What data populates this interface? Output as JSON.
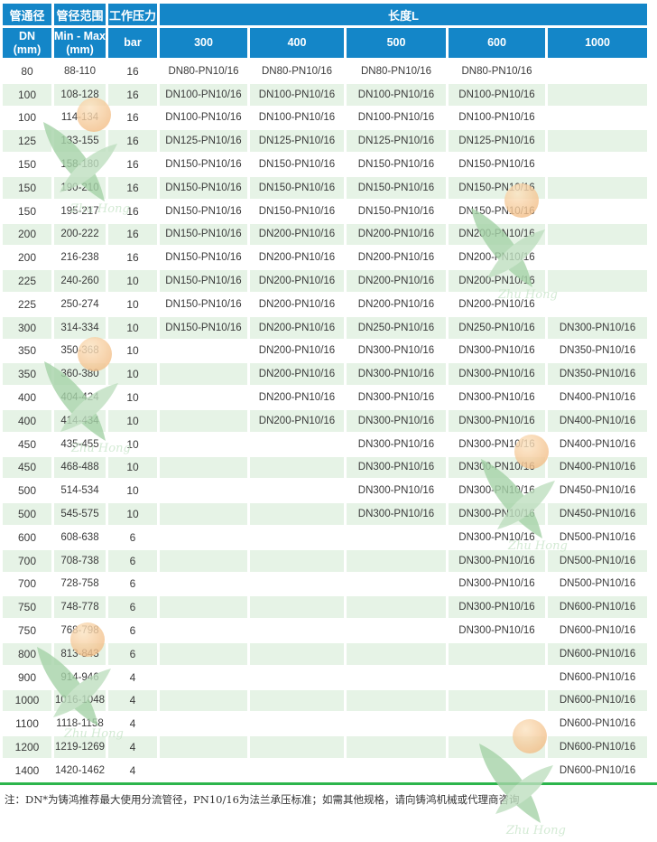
{
  "table": {
    "header": {
      "col1": {
        "title": "管通径",
        "line1": "DN",
        "line2": "(mm)"
      },
      "col2": {
        "title": "管径范围",
        "line1": "Min - Max",
        "line2": "(mm)"
      },
      "col3": {
        "title": "工作压力",
        "sub": "bar"
      },
      "length": {
        "title": "长度L",
        "cols": [
          "300",
          "400",
          "500",
          "600",
          "1000"
        ]
      }
    },
    "rows": [
      [
        "80",
        "88-110",
        "16",
        "DN80-PN10/16",
        "DN80-PN10/16",
        "DN80-PN10/16",
        "DN80-PN10/16",
        ""
      ],
      [
        "100",
        "108-128",
        "16",
        "DN100-PN10/16",
        "DN100-PN10/16",
        "DN100-PN10/16",
        "DN100-PN10/16",
        ""
      ],
      [
        "100",
        "114-134",
        "16",
        "DN100-PN10/16",
        "DN100-PN10/16",
        "DN100-PN10/16",
        "DN100-PN10/16",
        ""
      ],
      [
        "125",
        "133-155",
        "16",
        "DN125-PN10/16",
        "DN125-PN10/16",
        "DN125-PN10/16",
        "DN125-PN10/16",
        ""
      ],
      [
        "150",
        "158-180",
        "16",
        "DN150-PN10/16",
        "DN150-PN10/16",
        "DN150-PN10/16",
        "DN150-PN10/16",
        ""
      ],
      [
        "150",
        "190-210",
        "16",
        "DN150-PN10/16",
        "DN150-PN10/16",
        "DN150-PN10/16",
        "DN150-PN10/16",
        ""
      ],
      [
        "150",
        "195-217",
        "16",
        "DN150-PN10/16",
        "DN150-PN10/16",
        "DN150-PN10/16",
        "DN150-PN10/16",
        ""
      ],
      [
        "200",
        "200-222",
        "16",
        "DN150-PN10/16",
        "DN200-PN10/16",
        "DN200-PN10/16",
        "DN200-PN10/16",
        ""
      ],
      [
        "200",
        "216-238",
        "16",
        "DN150-PN10/16",
        "DN200-PN10/16",
        "DN200-PN10/16",
        "DN200-PN10/16",
        ""
      ],
      [
        "225",
        "240-260",
        "10",
        "DN150-PN10/16",
        "DN200-PN10/16",
        "DN200-PN10/16",
        "DN200-PN10/16",
        ""
      ],
      [
        "225",
        "250-274",
        "10",
        "DN150-PN10/16",
        "DN200-PN10/16",
        "DN200-PN10/16",
        "DN200-PN10/16",
        ""
      ],
      [
        "300",
        "314-334",
        "10",
        "DN150-PN10/16",
        "DN200-PN10/16",
        "DN250-PN10/16",
        "DN250-PN10/16",
        "DN300-PN10/16"
      ],
      [
        "350",
        "350-368",
        "10",
        "",
        "DN200-PN10/16",
        "DN300-PN10/16",
        "DN300-PN10/16",
        "DN350-PN10/16"
      ],
      [
        "350",
        "360-380",
        "10",
        "",
        "DN200-PN10/16",
        "DN300-PN10/16",
        "DN300-PN10/16",
        "DN350-PN10/16"
      ],
      [
        "400",
        "404-424",
        "10",
        "",
        "DN200-PN10/16",
        "DN300-PN10/16",
        "DN300-PN10/16",
        "DN400-PN10/16"
      ],
      [
        "400",
        "414-434",
        "10",
        "",
        "DN200-PN10/16",
        "DN300-PN10/16",
        "DN300-PN10/16",
        "DN400-PN10/16"
      ],
      [
        "450",
        "435-455",
        "10",
        "",
        "",
        "DN300-PN10/16",
        "DN300-PN10/16",
        "DN400-PN10/16"
      ],
      [
        "450",
        "468-488",
        "10",
        "",
        "",
        "DN300-PN10/16",
        "DN300-PN10/16",
        "DN400-PN10/16"
      ],
      [
        "500",
        "514-534",
        "10",
        "",
        "",
        "DN300-PN10/16",
        "DN300-PN10/16",
        "DN450-PN10/16"
      ],
      [
        "500",
        "545-575",
        "10",
        "",
        "",
        "DN300-PN10/16",
        "DN300-PN10/16",
        "DN450-PN10/16"
      ],
      [
        "600",
        "608-638",
        "6",
        "",
        "",
        "",
        "DN300-PN10/16",
        "DN500-PN10/16"
      ],
      [
        "700",
        "708-738",
        "6",
        "",
        "",
        "",
        "DN300-PN10/16",
        "DN500-PN10/16"
      ],
      [
        "700",
        "728-758",
        "6",
        "",
        "",
        "",
        "DN300-PN10/16",
        "DN500-PN10/16"
      ],
      [
        "750",
        "748-778",
        "6",
        "",
        "",
        "",
        "DN300-PN10/16",
        "DN600-PN10/16"
      ],
      [
        "750",
        "768-798",
        "6",
        "",
        "",
        "",
        "DN300-PN10/16",
        "DN600-PN10/16"
      ],
      [
        "800",
        "813-843",
        "6",
        "",
        "",
        "",
        "",
        "DN600-PN10/16"
      ],
      [
        "900",
        "914-946",
        "4",
        "",
        "",
        "",
        "",
        "DN600-PN10/16"
      ],
      [
        "1000",
        "1016-1048",
        "4",
        "",
        "",
        "",
        "",
        "DN600-PN10/16"
      ],
      [
        "1100",
        "1118-1158",
        "4",
        "",
        "",
        "",
        "",
        "DN600-PN10/16"
      ],
      [
        "1200",
        "1219-1269",
        "4",
        "",
        "",
        "",
        "",
        "DN600-PN10/16"
      ],
      [
        "1400",
        "1420-1462",
        "4",
        "",
        "",
        "",
        "",
        "DN600-PN10/16"
      ]
    ]
  },
  "footer_note": "注：DN*为铸鸿推荐最大使用分流管径，PN10/16为法兰承压标准；如需其他规格，请向铸鸿机械或代理商咨询",
  "watermark": {
    "text": "Zhu Hong"
  },
  "colors": {
    "header_blue": "#1486c8",
    "row_alt_green": "#e6f3e6",
    "divider_green": "#2cb54c",
    "text_dark": "#3a3a3a",
    "watermark_leaf": "#a6d3a8",
    "watermark_ball": "#f2ba81"
  }
}
